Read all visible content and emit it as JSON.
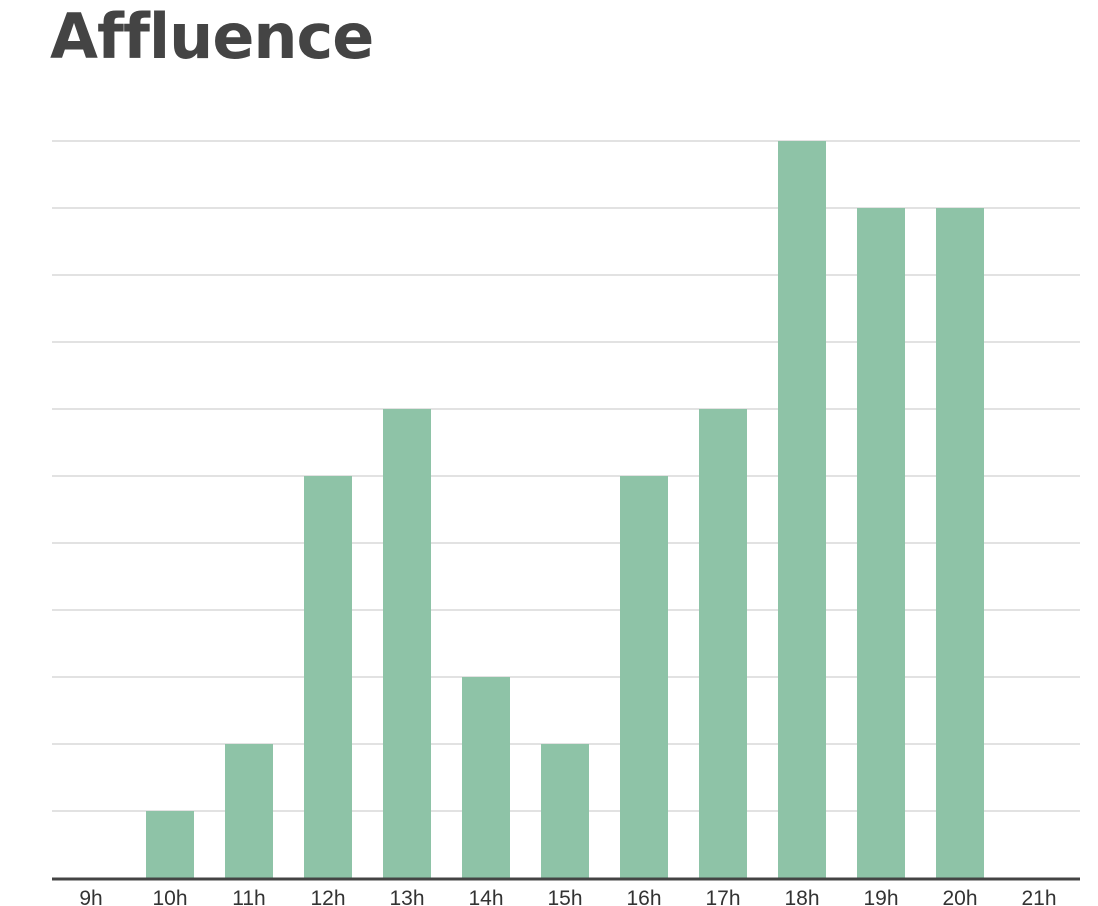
{
  "chart_data": {
    "type": "bar",
    "title": "Affluence",
    "xlabel": "",
    "ylabel": "",
    "categories": [
      "9h",
      "10h",
      "11h",
      "12h",
      "13h",
      "14h",
      "15h",
      "16h",
      "17h",
      "18h",
      "19h",
      "20h",
      "21h"
    ],
    "values": [
      0,
      1,
      2,
      6,
      7,
      3,
      2,
      6,
      7,
      11,
      10,
      10,
      0
    ],
    "ylim": [
      0,
      11
    ],
    "grid": true,
    "y_tick_labels_shown": false,
    "bar_color": "#8ec3a7",
    "grid_color": "#d9d9d9",
    "axis_color": "#444444"
  }
}
